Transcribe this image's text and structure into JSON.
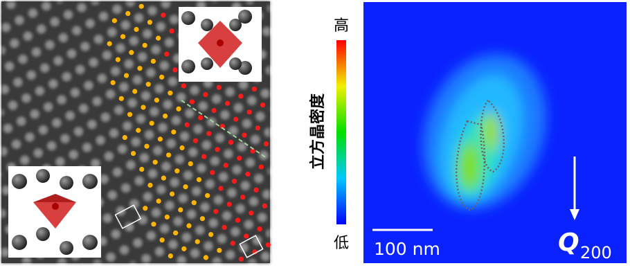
{
  "colorbar": {
    "high": "高",
    "title": "立方晶密度",
    "low": "低"
  },
  "scale_bar": {
    "label": "100 nm"
  },
  "vector": {
    "symbol": "Q",
    "subscript": "200"
  }
}
